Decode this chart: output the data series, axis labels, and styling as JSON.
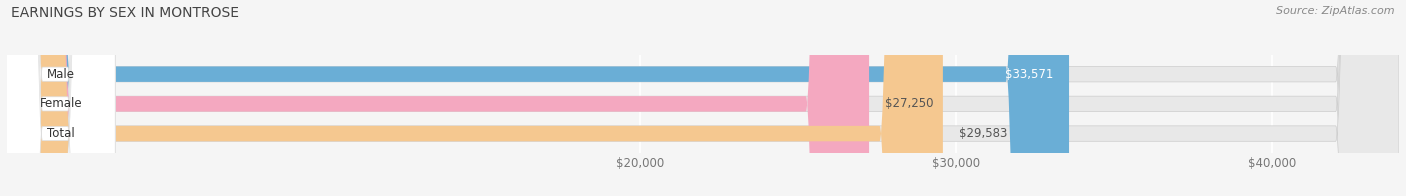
{
  "title": "EARNINGS BY SEX IN MONTROSE",
  "source": "Source: ZipAtlas.com",
  "categories": [
    "Male",
    "Female",
    "Total"
  ],
  "values": [
    33571,
    27250,
    29583
  ],
  "bar_colors": [
    "#6aaed6",
    "#f4a8c0",
    "#f5c890"
  ],
  "bar_bg_color": "#e8e8e8",
  "xmin": 0,
  "xmax": 44000,
  "xticks": [
    20000,
    30000,
    40000
  ],
  "xtick_labels": [
    "$20,000",
    "$30,000",
    "$40,000"
  ],
  "value_labels": [
    "$33,571",
    "$27,250",
    "$29,583"
  ],
  "value_colors": [
    "#ffffff",
    "#555555",
    "#555555"
  ],
  "title_fontsize": 10,
  "tick_fontsize": 8.5,
  "bar_label_fontsize": 8.5,
  "value_fontsize": 8.5,
  "source_fontsize": 8,
  "background_color": "#f5f5f5",
  "plot_bg_color": "#f5f5f5",
  "figsize": [
    14.06,
    1.96
  ]
}
